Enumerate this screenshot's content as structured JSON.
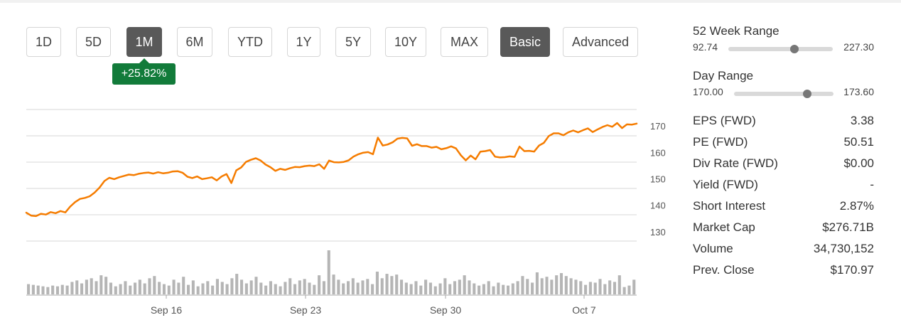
{
  "timeframes": [
    {
      "label": "1D",
      "active": false
    },
    {
      "label": "5D",
      "active": false
    },
    {
      "label": "1M",
      "active": true
    },
    {
      "label": "6M",
      "active": false
    },
    {
      "label": "YTD",
      "active": false
    },
    {
      "label": "1Y",
      "active": false
    },
    {
      "label": "5Y",
      "active": false
    },
    {
      "label": "10Y",
      "active": false
    },
    {
      "label": "MAX",
      "active": false
    }
  ],
  "view_modes": [
    {
      "label": "Basic",
      "active": true
    },
    {
      "label": "Advanced",
      "active": false
    }
  ],
  "change_badge": "+25.82%",
  "colors": {
    "line": "#f57c00",
    "badge": "#127b3a",
    "volume": "#b5b5b5",
    "active_button": "#595959"
  },
  "chart_data": {
    "type": "line",
    "x_tick_labels": [
      "Sep 16",
      "Sep 23",
      "Sep 30",
      "Oct 7"
    ],
    "y_tick_labels": [
      "170",
      "160",
      "150",
      "140",
      "130"
    ],
    "y_ticks": [
      170,
      160,
      150,
      140,
      130
    ],
    "ylim": [
      127,
      177.3
    ],
    "grid": true,
    "series": [
      {
        "values": [
          137.2,
          136.1,
          135.9,
          136.8,
          136.5,
          137.4,
          137.0,
          137.8,
          137.3,
          139.5,
          141.2,
          142.4,
          142.8,
          143.4,
          144.8,
          146.7,
          149.2,
          150.4,
          149.9,
          150.6,
          151.1,
          151.6,
          151.4,
          151.9,
          152.2,
          152.4,
          152.0,
          152.5,
          152.1,
          152.3,
          152.8,
          152.9,
          152.3,
          150.8,
          150.3,
          150.9,
          149.9,
          150.2,
          150.6,
          149.4,
          150.9,
          151.8,
          148.4,
          153.2,
          154.3,
          156.4,
          157.2,
          157.8,
          156.9,
          155.4,
          154.4,
          153.0,
          153.8,
          153.4,
          154.0,
          154.5,
          154.4,
          154.8,
          155.0,
          154.8,
          155.5,
          153.8,
          156.9,
          156.3,
          156.2,
          156.4,
          157.0,
          158.4,
          159.3,
          159.9,
          160.1,
          159.3,
          165.6,
          162.6,
          163.0,
          163.8,
          165.2,
          165.5,
          165.3,
          162.5,
          163.1,
          162.4,
          162.4,
          161.8,
          162.1,
          161.2,
          161.6,
          162.3,
          161.5,
          158.9,
          157.0,
          158.8,
          157.4,
          160.3,
          160.5,
          160.9,
          158.4,
          158.1,
          158.2,
          158.5,
          158.3,
          162.2,
          160.5,
          160.6,
          160.3,
          162.6,
          163.6,
          166.2,
          167.2,
          167.2,
          166.5,
          167.6,
          168.3,
          167.6,
          168.4,
          169.1,
          167.7,
          168.7,
          169.6,
          170.3,
          169.7,
          171.1,
          169.2,
          170.6,
          170.5,
          170.9
        ]
      }
    ],
    "volume": [
      14,
      13,
      12,
      11,
      10,
      12,
      11,
      13,
      12,
      17,
      19,
      15,
      20,
      22,
      18,
      26,
      24,
      16,
      11,
      14,
      18,
      12,
      16,
      20,
      15,
      22,
      25,
      17,
      14,
      12,
      20,
      16,
      24,
      13,
      19,
      11,
      15,
      18,
      12,
      21,
      17,
      14,
      22,
      28,
      20,
      15,
      19,
      24,
      16,
      12,
      18,
      14,
      11,
      17,
      22,
      14,
      19,
      21,
      16,
      13,
      26,
      18,
      60,
      27,
      20,
      15,
      18,
      22,
      16,
      19,
      21,
      14,
      31,
      22,
      28,
      25,
      27,
      20,
      16,
      14,
      18,
      12,
      20,
      16,
      11,
      15,
      22,
      14,
      18,
      20,
      26,
      19,
      15,
      12,
      14,
      18,
      11,
      16,
      13,
      12,
      15,
      18,
      25,
      21,
      16,
      30,
      22,
      24,
      20,
      26,
      29,
      25,
      22,
      20,
      18,
      13,
      17,
      16,
      21,
      14,
      19,
      17,
      26,
      10,
      12,
      20
    ]
  },
  "stats": {
    "week52": {
      "label": "52 Week Range",
      "low": "92.74",
      "high": "227.30",
      "position": 0.635
    },
    "day": {
      "label": "Day Range",
      "low": "170.00",
      "high": "173.60",
      "position": 0.735
    },
    "rows": [
      {
        "label": "EPS (FWD)",
        "value": "3.38"
      },
      {
        "label": "PE (FWD)",
        "value": "50.51"
      },
      {
        "label": "Div Rate (FWD)",
        "value": "$0.00"
      },
      {
        "label": "Yield (FWD)",
        "value": "-"
      },
      {
        "label": "Short Interest",
        "value": "2.87%"
      },
      {
        "label": "Market Cap",
        "value": "$276.71B"
      },
      {
        "label": "Volume",
        "value": "34,730,152"
      },
      {
        "label": "Prev. Close",
        "value": "$170.97"
      }
    ]
  }
}
